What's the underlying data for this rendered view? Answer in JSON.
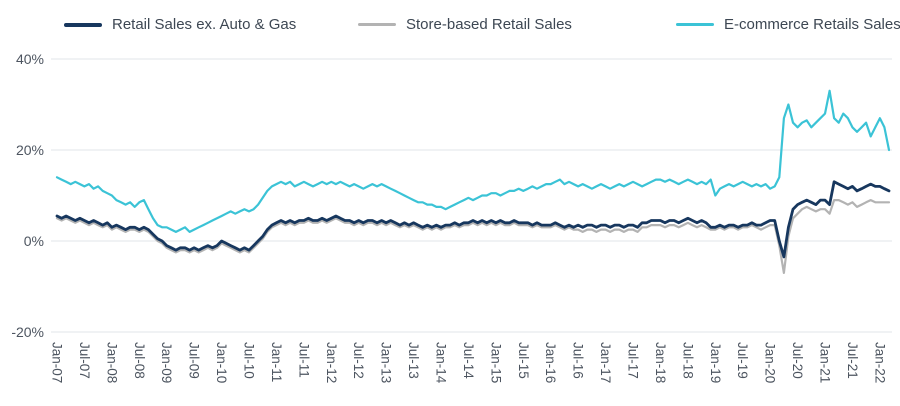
{
  "colors": {
    "background": "#ffffff",
    "grid": "#e2e5e9",
    "tick_text": "#4d5560",
    "legend_text": "#3d4753"
  },
  "chart_data": {
    "type": "line",
    "title": "",
    "x_unit": "month",
    "x_start": "Jan-07",
    "x_end": "Mar-22",
    "x_tick_every": 6,
    "x_tick_labels": [
      "Jan-07",
      "Jul-07",
      "Jan-08",
      "Jul-08",
      "Jan-09",
      "Jul-09",
      "Jan-10",
      "Jul-10",
      "Jan-11",
      "Jul-11",
      "Jan-12",
      "Jul-12",
      "Jan-13",
      "Jul-13",
      "Jan-14",
      "Jul-14",
      "Jan-15",
      "Jul-15",
      "Jan-16",
      "Jul-16",
      "Jan-17",
      "Jul-17",
      "Jan-18",
      "Jul-18",
      "Jan-19",
      "Jul-19",
      "Jan-20",
      "Jul-20",
      "Jan-21",
      "Jul-21",
      "Jan-22"
    ],
    "ylim": [
      -20,
      40
    ],
    "y_ticks": [
      {
        "value": 40,
        "label": "40%"
      },
      {
        "value": 20,
        "label": "20%"
      },
      {
        "value": 0,
        "label": "0%"
      },
      {
        "value": -20,
        "label": "-20%"
      }
    ],
    "grid": "horizontal",
    "legend_position": "top",
    "series": [
      {
        "name": "Retail Sales ex. Auto & Gas",
        "color": "#17375e",
        "values": [
          5.5,
          5,
          5.5,
          5,
          4.5,
          5,
          4.5,
          4,
          4.5,
          4,
          3.5,
          4,
          3,
          3.5,
          3,
          2.5,
          3,
          3,
          2.5,
          3,
          2.5,
          1.5,
          0.5,
          0,
          -1,
          -1.5,
          -2,
          -1.5,
          -1.5,
          -2,
          -1.5,
          -2,
          -1.5,
          -1,
          -1.5,
          -1,
          0,
          -0.5,
          -1,
          -1.5,
          -2,
          -1.5,
          -2,
          -1,
          0,
          1,
          2.5,
          3.5,
          4,
          4.5,
          4,
          4.5,
          4,
          4.5,
          4.5,
          5,
          4.5,
          4.5,
          5,
          4.5,
          5,
          5.5,
          5,
          4.5,
          4.5,
          4,
          4.5,
          4,
          4.5,
          4.5,
          4,
          4.5,
          4,
          4.5,
          4,
          3.5,
          4,
          3.5,
          4,
          3.5,
          3,
          3.5,
          3,
          3.5,
          3,
          3.5,
          3.5,
          4,
          3.5,
          4,
          4,
          4.5,
          4,
          4.5,
          4,
          4.5,
          4,
          4.5,
          4,
          4,
          4.5,
          4,
          4,
          4,
          3.5,
          4,
          3.5,
          3.5,
          3.5,
          4,
          3.5,
          3,
          3.5,
          3,
          3.5,
          3,
          3.5,
          3.5,
          3,
          3.5,
          3.5,
          3,
          3.5,
          3.5,
          3,
          3.5,
          3.5,
          3,
          4,
          4,
          4.5,
          4.5,
          4.5,
          4,
          4.5,
          4.5,
          4,
          4.5,
          5,
          4.5,
          4,
          4.5,
          4,
          3,
          3,
          3.5,
          3,
          3.5,
          3.5,
          3,
          3.5,
          3.5,
          4,
          3.5,
          3.5,
          4,
          4.5,
          4.5,
          0,
          -3.5,
          3,
          7,
          8,
          8.5,
          9,
          8.5,
          8,
          9,
          9,
          8,
          13,
          12.5,
          12,
          11.5,
          12,
          11,
          11.5,
          12,
          12.5,
          12,
          12,
          11.5,
          11
        ]
      },
      {
        "name": "Store-based Retail Sales",
        "color": "#b3b3b3",
        "values": [
          5,
          4.5,
          5,
          4.5,
          4,
          4.5,
          4,
          3.5,
          4,
          3.5,
          3,
          3.5,
          2.5,
          3,
          2.5,
          2,
          2.5,
          2.5,
          2,
          2.5,
          2,
          1,
          0,
          -0.5,
          -1.5,
          -2,
          -2.5,
          -2,
          -2,
          -2.5,
          -2,
          -2.5,
          -2,
          -1.5,
          -2,
          -1.5,
          -0.5,
          -1,
          -1.5,
          -2,
          -2.5,
          -2,
          -2.5,
          -1.5,
          -0.5,
          0.5,
          2,
          3,
          3.5,
          4,
          3.5,
          4,
          3.5,
          4,
          4,
          4.5,
          4,
          4,
          4.5,
          4,
          4.5,
          5,
          4.5,
          4,
          4,
          3.5,
          4,
          3.5,
          4,
          4,
          3.5,
          4,
          3.5,
          4,
          3.5,
          3,
          3.5,
          3,
          3.5,
          3,
          2.5,
          3,
          2.5,
          3,
          2.5,
          3,
          3,
          3.5,
          3,
          3.5,
          3.5,
          4,
          3.5,
          4,
          3.5,
          4,
          3.5,
          4,
          3.5,
          3.5,
          4,
          3.5,
          3.5,
          3.5,
          3,
          3.5,
          3,
          3,
          3,
          3.5,
          3,
          2.5,
          3,
          2.5,
          2.5,
          2,
          2.5,
          2.5,
          2,
          2.5,
          2.5,
          2,
          2.5,
          2.5,
          2,
          2.5,
          2.5,
          2,
          3,
          3,
          3.5,
          3.5,
          3.5,
          3,
          3.5,
          3.5,
          3,
          3.5,
          4,
          3.5,
          3,
          3.5,
          3,
          2.5,
          2.5,
          3,
          2.5,
          3,
          3,
          2.5,
          3,
          3,
          3.5,
          3,
          2.5,
          3,
          3.5,
          3.5,
          -1,
          -7,
          1,
          5,
          6,
          7,
          7.5,
          7,
          6.5,
          7,
          7,
          6,
          9,
          9,
          8.5,
          8,
          8.5,
          7.5,
          8,
          8.5,
          9,
          8.5,
          8.5,
          8.5,
          8.5
        ]
      },
      {
        "name": "E-commerce Retails Sales",
        "color": "#3bc3d6",
        "values": [
          14,
          13.5,
          13,
          12.5,
          13,
          12.5,
          12,
          12.5,
          11.5,
          12,
          11,
          10.5,
          10,
          9,
          8.5,
          8,
          8.5,
          7.5,
          8.5,
          9,
          7,
          5,
          3.5,
          3,
          3,
          2.5,
          2,
          2.5,
          3,
          2,
          2.5,
          3,
          3.5,
          4,
          4.5,
          5,
          5.5,
          6,
          6.5,
          6,
          6.5,
          7,
          6.5,
          7,
          8,
          9.5,
          11,
          12,
          12.5,
          13,
          12.5,
          13,
          12,
          12.5,
          13,
          12.5,
          12,
          12.5,
          13,
          12.5,
          13,
          12.5,
          13,
          12.5,
          12,
          12.5,
          12,
          11.5,
          12,
          12.5,
          12,
          12.5,
          12,
          11.5,
          11,
          10.5,
          10,
          9.5,
          9,
          8.5,
          8.5,
          8,
          8,
          7.5,
          7.5,
          7,
          7.5,
          8,
          8.5,
          9,
          9.5,
          9,
          9.5,
          10,
          10,
          10.5,
          10.5,
          10,
          10.5,
          11,
          11,
          11.5,
          11,
          11.5,
          12,
          11.5,
          12,
          12.5,
          12.5,
          13,
          13.5,
          12.5,
          13,
          12.5,
          12,
          12.5,
          12,
          11.5,
          12,
          12.5,
          12,
          11.5,
          12,
          12.5,
          12,
          12.5,
          13,
          12.5,
          12,
          12.5,
          13,
          13.5,
          13.5,
          13,
          13.5,
          13,
          12.5,
          13,
          13.5,
          13,
          12.5,
          13,
          12.5,
          13.5,
          10,
          11.5,
          12,
          12.5,
          12,
          12.5,
          13,
          12.5,
          12,
          12.5,
          12,
          12.5,
          11.5,
          12,
          14,
          27,
          30,
          26,
          25,
          26,
          26.5,
          25,
          26,
          27,
          28,
          33,
          27,
          26,
          28,
          27,
          25,
          24,
          25,
          26,
          23,
          25,
          27,
          25,
          20
        ]
      }
    ]
  }
}
